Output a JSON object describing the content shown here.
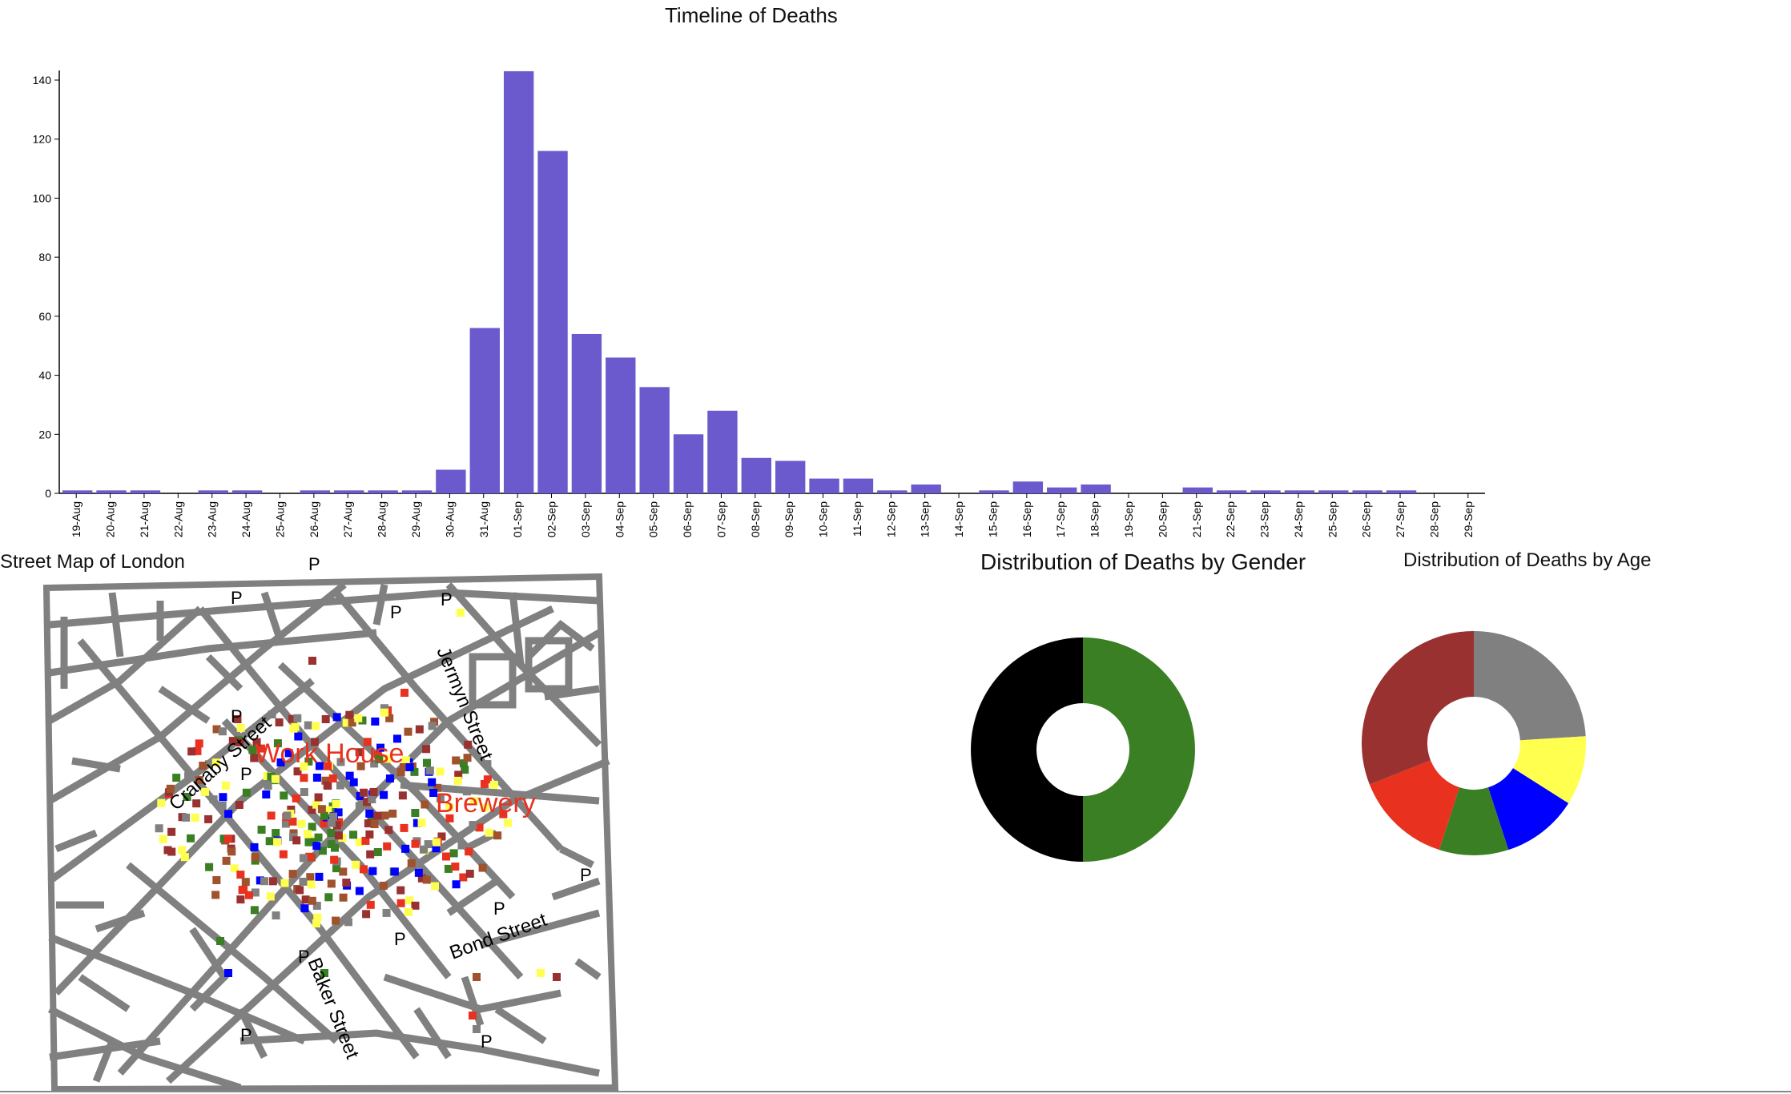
{
  "timeline": {
    "title": "Timeline of Deaths"
  },
  "map": {
    "title": "Street Map of London",
    "streets": {
      "cranaby": "Cranaby Street",
      "jermyn": "Jermyn Street",
      "bond": "Bond Street",
      "baker": "Baker Street"
    },
    "landmarks": {
      "workhouse": "Work House",
      "brewery": "Brewery"
    },
    "pump_label": "P",
    "colors": {
      "streets": "#808080",
      "landmark": "#e8321f"
    }
  },
  "gender": {
    "title": "Distribution of Deaths by Gender"
  },
  "age": {
    "title": "Distribution of Deaths by Age"
  },
  "chart_data": [
    {
      "type": "bar",
      "title": "Timeline of Deaths",
      "xlabel": "",
      "ylabel": "",
      "ylim": [
        0,
        143
      ],
      "yticks": [
        0,
        20,
        40,
        60,
        80,
        100,
        120,
        140
      ],
      "color": "#6a5acd",
      "categories": [
        "19-Aug",
        "20-Aug",
        "21-Aug",
        "22-Aug",
        "23-Aug",
        "24-Aug",
        "25-Aug",
        "26-Aug",
        "27-Aug",
        "28-Aug",
        "29-Aug",
        "30-Aug",
        "31-Aug",
        "01-Sep",
        "02-Sep",
        "03-Sep",
        "04-Sep",
        "05-Sep",
        "06-Sep",
        "07-Sep",
        "08-Sep",
        "09-Sep",
        "10-Sep",
        "11-Sep",
        "12-Sep",
        "13-Sep",
        "14-Sep",
        "15-Sep",
        "16-Sep",
        "17-Sep",
        "18-Sep",
        "19-Sep",
        "20-Sep",
        "21-Sep",
        "22-Sep",
        "23-Sep",
        "24-Sep",
        "25-Sep",
        "26-Sep",
        "27-Sep",
        "28-Sep",
        "29-Sep"
      ],
      "values": [
        1,
        1,
        1,
        0,
        1,
        1,
        0,
        1,
        1,
        1,
        1,
        8,
        56,
        143,
        116,
        54,
        46,
        36,
        20,
        28,
        12,
        11,
        5,
        5,
        1,
        3,
        0,
        1,
        4,
        2,
        3,
        0,
        0,
        2,
        1,
        1,
        1,
        1,
        1,
        1,
        0,
        0
      ],
      "grid": false
    },
    {
      "type": "pie",
      "title": "Distribution of Deaths by Gender",
      "donut": true,
      "values": [
        50,
        50
      ],
      "colors": [
        "#3a7f23",
        "#000000"
      ]
    },
    {
      "type": "pie",
      "title": "Distribution of Deaths by Age",
      "donut": true,
      "values": [
        24,
        10,
        11,
        10,
        14,
        31
      ],
      "colors": [
        "#808080",
        "#ffff4f",
        "#0000ff",
        "#3a7f23",
        "#e8321f",
        "#983130"
      ]
    }
  ]
}
